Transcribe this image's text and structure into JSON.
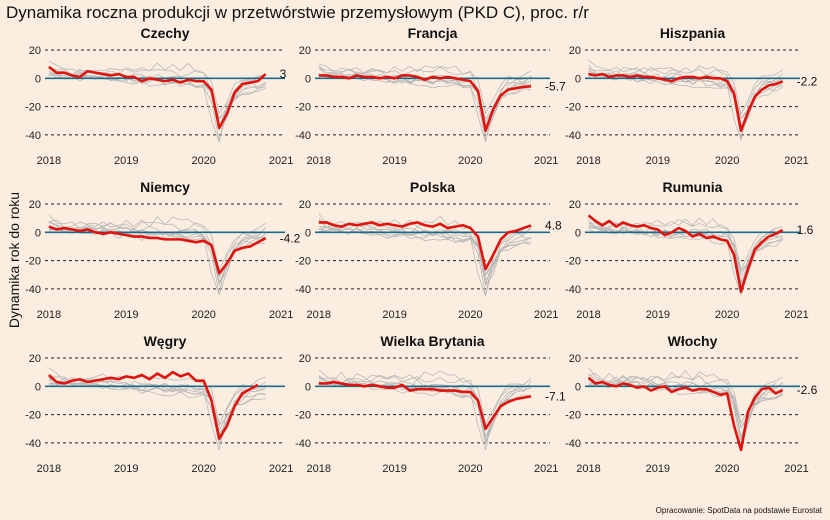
{
  "title": "Dynamika roczna produkcji w przetwórstwie przemysłowym (PKD C), proc. r/r",
  "y_axis_label": "Dynamika rok do roku",
  "source": "Opracowanie: SpotData na podstawie Eurostat",
  "colors": {
    "background": "#fbeee1",
    "highlight_series": "#e0140f",
    "other_series": "#b8b8b8",
    "zero_line": "#1a6b8a",
    "gridline": "#222222"
  },
  "chart_data": [
    {
      "type": "line",
      "title": "Czechy",
      "end_label": "3",
      "ylim": [
        -45,
        20
      ],
      "yticks": [
        20,
        0,
        -20,
        -40
      ],
      "xticks": [
        2018,
        2019,
        2020,
        2021
      ],
      "grid": "dashed horizontal",
      "x": [
        2018.0,
        2018.1,
        2018.2,
        2018.3,
        2018.4,
        2018.5,
        2018.6,
        2018.7,
        2018.8,
        2018.9,
        2019.0,
        2019.1,
        2019.2,
        2019.3,
        2019.4,
        2019.5,
        2019.6,
        2019.7,
        2019.8,
        2019.9,
        2020.0,
        2020.1,
        2020.2,
        2020.3,
        2020.4,
        2020.5,
        2020.6,
        2020.7,
        2020.8
      ],
      "y": [
        8,
        4,
        4,
        2,
        1,
        5,
        4,
        3,
        2,
        3,
        1,
        1,
        -2,
        0,
        -1,
        -2,
        -1,
        -3,
        -1,
        -2,
        -2,
        -8,
        -35,
        -25,
        -10,
        -4,
        -3,
        -2,
        3
      ]
    },
    {
      "type": "line",
      "title": "Francja",
      "end_label": "-5.7",
      "ylim": [
        -45,
        20
      ],
      "yticks": [
        20,
        0,
        -20,
        -40
      ],
      "xticks": [
        2018,
        2019,
        2020,
        2021
      ],
      "grid": "dashed horizontal",
      "x": [
        2018.0,
        2018.1,
        2018.2,
        2018.3,
        2018.4,
        2018.5,
        2018.6,
        2018.7,
        2018.8,
        2018.9,
        2019.0,
        2019.1,
        2019.2,
        2019.3,
        2019.4,
        2019.5,
        2019.6,
        2019.7,
        2019.8,
        2019.9,
        2020.0,
        2020.1,
        2020.2,
        2020.3,
        2020.4,
        2020.5,
        2020.6,
        2020.7,
        2020.8
      ],
      "y": [
        2,
        2,
        1,
        1,
        0,
        2,
        1,
        1,
        0,
        1,
        0,
        2,
        2,
        1,
        -1,
        1,
        0,
        1,
        0,
        -1,
        -2,
        -9,
        -37,
        -22,
        -12,
        -8,
        -7,
        -6,
        -5.7
      ]
    },
    {
      "type": "line",
      "title": "Hiszpania",
      "end_label": "-2.2",
      "ylim": [
        -45,
        20
      ],
      "yticks": [
        20,
        0,
        -20,
        -40
      ],
      "xticks": [
        2018,
        2019,
        2020,
        2021
      ],
      "grid": "dashed horizontal",
      "x": [
        2018.0,
        2018.1,
        2018.2,
        2018.3,
        2018.4,
        2018.5,
        2018.6,
        2018.7,
        2018.8,
        2018.9,
        2019.0,
        2019.1,
        2019.2,
        2019.3,
        2019.4,
        2019.5,
        2019.6,
        2019.7,
        2019.8,
        2019.9,
        2020.0,
        2020.1,
        2020.2,
        2020.3,
        2020.4,
        2020.5,
        2020.6,
        2020.7,
        2020.8
      ],
      "y": [
        3,
        2,
        3,
        1,
        2,
        2,
        1,
        2,
        1,
        1,
        0,
        -1,
        -2,
        0,
        1,
        1,
        0,
        1,
        0,
        0,
        -2,
        -11,
        -37,
        -24,
        -13,
        -8,
        -5,
        -4,
        -2.2
      ]
    },
    {
      "type": "line",
      "title": "Niemcy",
      "end_label": "-4.2",
      "ylim": [
        -45,
        20
      ],
      "yticks": [
        20,
        0,
        -20,
        -40
      ],
      "xticks": [
        2018,
        2019,
        2020,
        2021
      ],
      "grid": "dashed horizontal",
      "x": [
        2018.0,
        2018.1,
        2018.2,
        2018.3,
        2018.4,
        2018.5,
        2018.6,
        2018.7,
        2018.8,
        2018.9,
        2019.0,
        2019.1,
        2019.2,
        2019.3,
        2019.4,
        2019.5,
        2019.6,
        2019.7,
        2019.8,
        2019.9,
        2020.0,
        2020.1,
        2020.2,
        2020.3,
        2020.4,
        2020.5,
        2020.6,
        2020.7,
        2020.8
      ],
      "y": [
        4,
        2,
        3,
        2,
        1,
        2,
        0,
        -1,
        0,
        -1,
        -2,
        -3,
        -3,
        -4,
        -4,
        -5,
        -5,
        -5,
        -6,
        -7,
        -6,
        -9,
        -29,
        -22,
        -13,
        -11,
        -10,
        -7,
        -4.2
      ]
    },
    {
      "type": "line",
      "title": "Polska",
      "end_label": "4.8",
      "ylim": [
        -45,
        20
      ],
      "yticks": [
        20,
        0,
        -20,
        -40
      ],
      "xticks": [
        2018,
        2019,
        2020,
        2021
      ],
      "grid": "dashed horizontal",
      "x": [
        2018.0,
        2018.1,
        2018.2,
        2018.3,
        2018.4,
        2018.5,
        2018.6,
        2018.7,
        2018.8,
        2018.9,
        2019.0,
        2019.1,
        2019.2,
        2019.3,
        2019.4,
        2019.5,
        2019.6,
        2019.7,
        2019.8,
        2019.9,
        2020.0,
        2020.1,
        2020.2,
        2020.3,
        2020.4,
        2020.5,
        2020.6,
        2020.7,
        2020.8
      ],
      "y": [
        7,
        7,
        5,
        4,
        6,
        5,
        6,
        7,
        5,
        6,
        5,
        4,
        6,
        7,
        5,
        4,
        6,
        3,
        4,
        5,
        3,
        -3,
        -26,
        -16,
        -5,
        0,
        1,
        3,
        4.8
      ]
    },
    {
      "type": "line",
      "title": "Rumunia",
      "end_label": "1.6",
      "ylim": [
        -45,
        20
      ],
      "yticks": [
        20,
        0,
        -20,
        -40
      ],
      "xticks": [
        2018,
        2019,
        2020,
        2021
      ],
      "grid": "dashed horizontal",
      "x": [
        2018.0,
        2018.1,
        2018.2,
        2018.3,
        2018.4,
        2018.5,
        2018.6,
        2018.7,
        2018.8,
        2018.9,
        2019.0,
        2019.1,
        2019.2,
        2019.3,
        2019.4,
        2019.5,
        2019.6,
        2019.7,
        2019.8,
        2019.9,
        2020.0,
        2020.1,
        2020.2,
        2020.3,
        2020.4,
        2020.5,
        2020.6,
        2020.7,
        2020.8
      ],
      "y": [
        12,
        8,
        5,
        8,
        4,
        7,
        5,
        4,
        5,
        3,
        2,
        -2,
        0,
        3,
        1,
        -3,
        -1,
        -4,
        -3,
        -5,
        -6,
        -16,
        -42,
        -26,
        -12,
        -7,
        -3,
        -1,
        1.6
      ]
    },
    {
      "type": "line",
      "title": "Węgry",
      "end_label": "",
      "ylim": [
        -45,
        20
      ],
      "yticks": [
        20,
        0,
        -20,
        -40
      ],
      "xticks": [
        2018,
        2019,
        2020,
        2021
      ],
      "grid": "dashed horizontal",
      "x": [
        2018.0,
        2018.1,
        2018.2,
        2018.3,
        2018.4,
        2018.5,
        2018.6,
        2018.7,
        2018.8,
        2018.9,
        2019.0,
        2019.1,
        2019.2,
        2019.3,
        2019.4,
        2019.5,
        2019.6,
        2019.7,
        2019.8,
        2019.9,
        2020.0,
        2020.1,
        2020.2,
        2020.3,
        2020.4,
        2020.5,
        2020.6,
        2020.7
      ],
      "y": [
        8,
        3,
        2,
        4,
        5,
        3,
        4,
        5,
        6,
        5,
        7,
        6,
        8,
        5,
        9,
        6,
        10,
        7,
        9,
        4,
        4,
        -10,
        -37,
        -28,
        -14,
        -5,
        -2,
        1
      ]
    },
    {
      "type": "line",
      "title": "Wielka Brytania",
      "end_label": "-7.1",
      "ylim": [
        -45,
        20
      ],
      "yticks": [
        20,
        0,
        -20,
        -40
      ],
      "xticks": [
        2018,
        2019,
        2020,
        2021
      ],
      "grid": "dashed horizontal",
      "x": [
        2018.0,
        2018.1,
        2018.2,
        2018.3,
        2018.4,
        2018.5,
        2018.6,
        2018.7,
        2018.8,
        2018.9,
        2019.0,
        2019.1,
        2019.2,
        2019.3,
        2019.4,
        2019.5,
        2019.6,
        2019.7,
        2019.8,
        2019.9,
        2020.0,
        2020.1,
        2020.2,
        2020.3,
        2020.4,
        2020.5,
        2020.6,
        2020.7,
        2020.8
      ],
      "y": [
        2,
        2,
        3,
        2,
        1,
        1,
        0,
        1,
        0,
        -1,
        -1,
        1,
        -3,
        -2,
        -2,
        -2,
        -3,
        -3,
        -3,
        -4,
        -4,
        -10,
        -30,
        -22,
        -14,
        -11,
        -9,
        -8,
        -7.1
      ]
    },
    {
      "type": "line",
      "title": "Włochy",
      "end_label": "-2.6",
      "ylim": [
        -45,
        20
      ],
      "yticks": [
        20,
        0,
        -20,
        -40
      ],
      "xticks": [
        2018,
        2019,
        2020,
        2021
      ],
      "grid": "dashed horizontal",
      "x": [
        2018.0,
        2018.1,
        2018.2,
        2018.3,
        2018.4,
        2018.5,
        2018.6,
        2018.7,
        2018.8,
        2018.9,
        2019.0,
        2019.1,
        2019.2,
        2019.3,
        2019.4,
        2019.5,
        2019.6,
        2019.7,
        2019.8,
        2019.9,
        2020.0,
        2020.1,
        2020.2,
        2020.3,
        2020.4,
        2020.5,
        2020.6,
        2020.7,
        2020.8
      ],
      "y": [
        6,
        2,
        3,
        1,
        0,
        2,
        1,
        -1,
        0,
        -3,
        -1,
        0,
        -4,
        -2,
        -1,
        -3,
        -2,
        -2,
        -4,
        -6,
        -5,
        -28,
        -45,
        -18,
        -8,
        -2,
        -1,
        -5,
        -2.6
      ]
    }
  ]
}
